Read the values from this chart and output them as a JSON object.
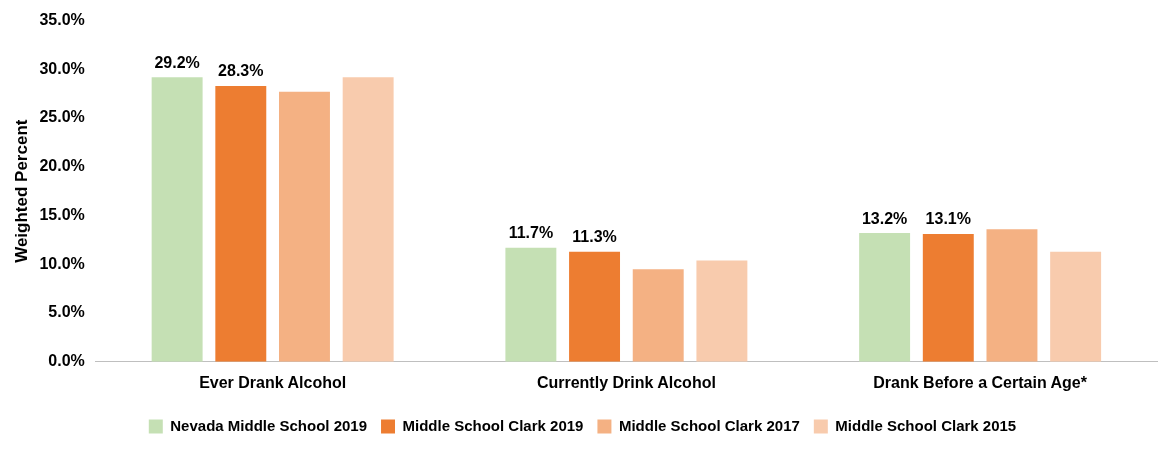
{
  "chart_data": {
    "type": "bar",
    "ylabel": "Weighted Percent",
    "categories": [
      "Ever Drank Alcohol",
      "Currently Drink Alcohol",
      "Drank Before a Certain Age*"
    ],
    "series": [
      {
        "name": "Nevada Middle School 2019",
        "color": "#c5e0b4",
        "values": [
          29.2,
          11.7,
          13.2
        ],
        "value_labels": [
          "29.2%",
          "11.7%",
          "13.2%"
        ]
      },
      {
        "name": "Middle School Clark 2019",
        "color": "#ed7d31",
        "values": [
          28.3,
          11.3,
          13.1
        ],
        "value_labels": [
          "28.3%",
          "11.3%",
          "13.1%"
        ]
      },
      {
        "name": "Middle School Clark 2017",
        "color": "#f4b183",
        "values": [
          27.7,
          9.5,
          13.6
        ]
      },
      {
        "name": "Middle School Clark 2015",
        "color": "#f8cbad",
        "values": [
          29.2,
          10.4,
          11.3
        ]
      }
    ],
    "ylim": [
      0,
      35
    ],
    "yticks": [
      {
        "value": 0,
        "label": "0.0%"
      },
      {
        "value": 5,
        "label": "5.0%"
      },
      {
        "value": 10,
        "label": "10.0%"
      },
      {
        "value": 15,
        "label": "15.0%"
      },
      {
        "value": 20,
        "label": "20.0%"
      },
      {
        "value": 25,
        "label": "25.0%"
      },
      {
        "value": 30,
        "label": "30.0%"
      },
      {
        "value": 35,
        "label": "35.0%"
      }
    ],
    "grid": false,
    "legend": "bottom"
  }
}
